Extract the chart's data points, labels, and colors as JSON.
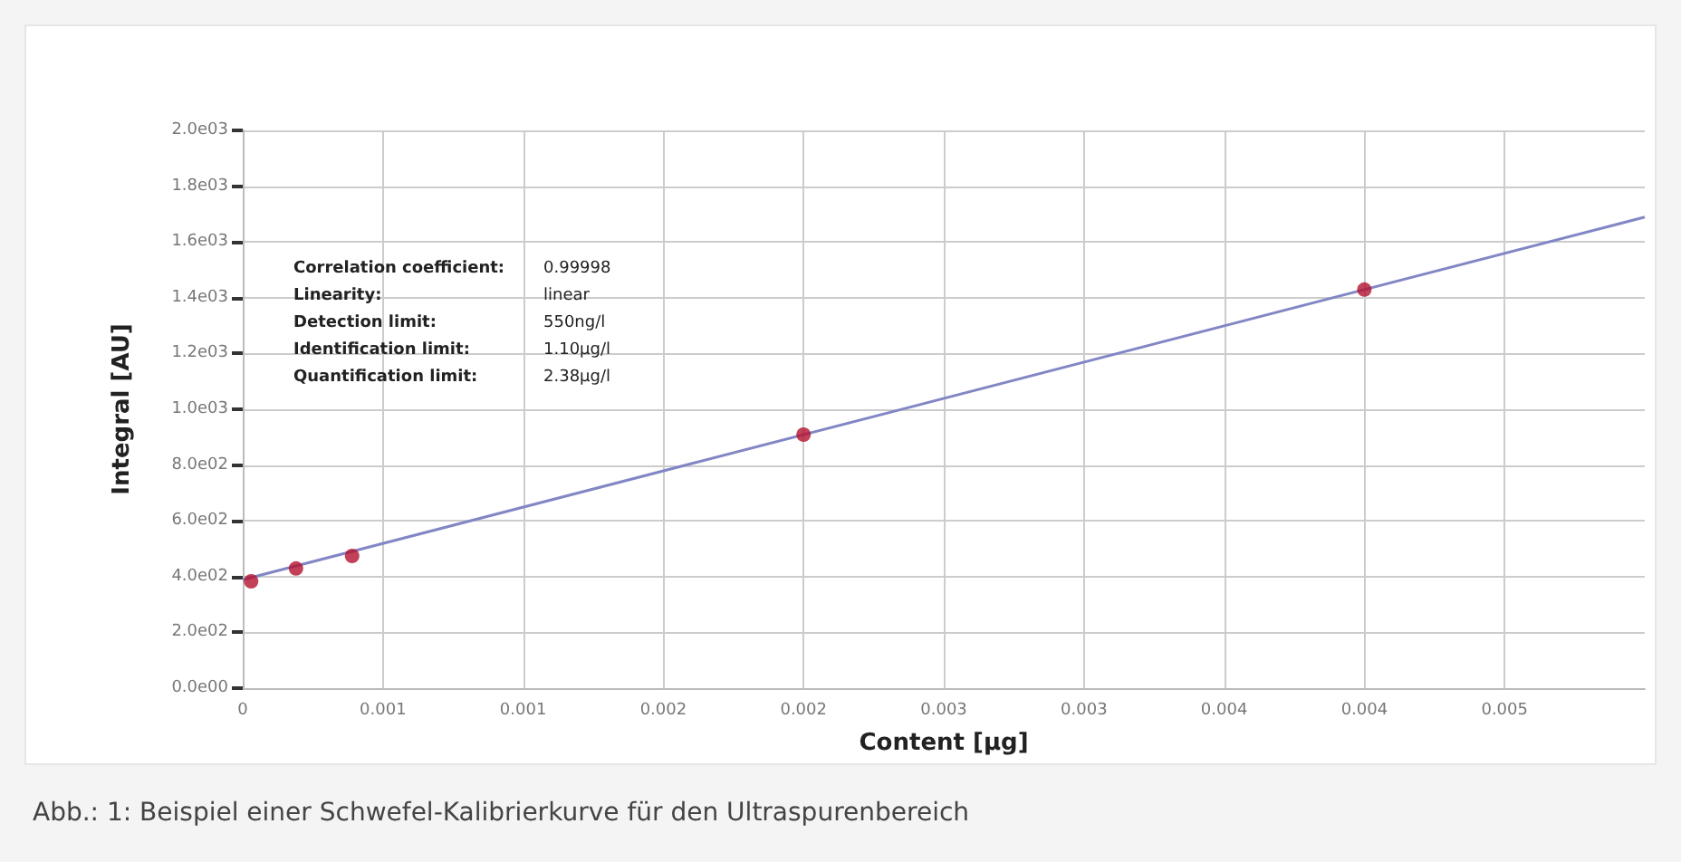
{
  "chart_data": {
    "type": "scatter",
    "xlabel": "Content [µg]",
    "ylabel": "Integral [AU]",
    "xlim": [
      0,
      0.005
    ],
    "ylim": [
      0,
      2000
    ],
    "xticks": [
      {
        "value": 0,
        "label": "0"
      },
      {
        "value": 0.0005,
        "label": "0.001"
      },
      {
        "value": 0.001,
        "label": "0.001"
      },
      {
        "value": 0.0015,
        "label": "0.002"
      },
      {
        "value": 0.002,
        "label": "0.002"
      },
      {
        "value": 0.0025,
        "label": "0.003"
      },
      {
        "value": 0.003,
        "label": "0.003"
      },
      {
        "value": 0.0035,
        "label": "0.004"
      },
      {
        "value": 0.004,
        "label": "0.004"
      },
      {
        "value": 0.0045,
        "label": "0.005"
      }
    ],
    "yticks": [
      {
        "value": 0,
        "label": "0.0e00"
      },
      {
        "value": 200,
        "label": "2.0e02"
      },
      {
        "value": 400,
        "label": "4.0e02"
      },
      {
        "value": 600,
        "label": "6.0e02"
      },
      {
        "value": 800,
        "label": "8.0e02"
      },
      {
        "value": 1000,
        "label": "1.0e03"
      },
      {
        "value": 1200,
        "label": "1.2e03"
      },
      {
        "value": 1400,
        "label": "1.4e03"
      },
      {
        "value": 1600,
        "label": "1.6e03"
      },
      {
        "value": 1800,
        "label": "1.8e03"
      },
      {
        "value": 2000,
        "label": "2.0e03"
      }
    ],
    "grid": true,
    "marker": "circle",
    "series": [
      {
        "type": "line",
        "color": "#8286c4",
        "x": [
          0,
          0.005
        ],
        "values": [
          389,
          1689
        ],
        "marker": "none"
      },
      {
        "color": "#b3122e",
        "x": [
          3e-05,
          0.00019,
          0.00039,
          0.002,
          0.004
        ],
        "values": [
          383,
          429,
          474,
          909,
          1429
        ]
      }
    ],
    "annotations": [
      "Correlation coefficient:",
      "0.99998",
      "Linearity:",
      "linear",
      "Detection limit:",
      "550ng/l",
      "Identification limit:",
      "1.10µg/l",
      "Quantification limit:",
      "2.38µg/l",
      "Abb.: 1: Beispiel einer Schwefel-Kalibrierkurve für den Ultraspurenbereich"
    ]
  }
}
